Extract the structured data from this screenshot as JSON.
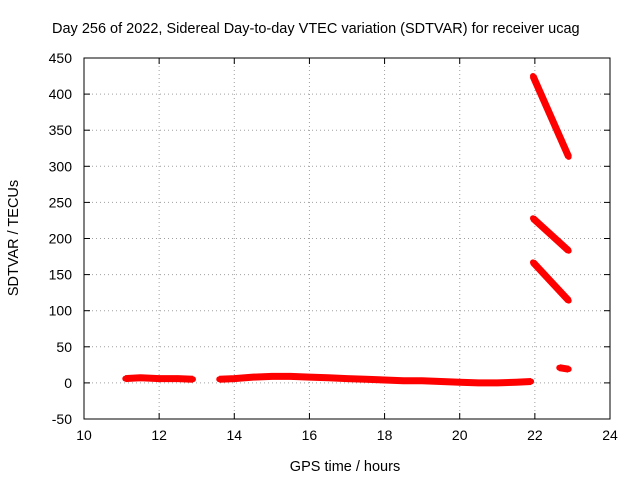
{
  "chart_data": {
    "type": "scatter",
    "title": "Day 256 of 2022, Sidereal Day-to-day VTEC variation (SDTVAR) for receiver ucag",
    "xlabel": "GPS time / hours",
    "ylabel": "SDTVAR / TECUs",
    "xlim": [
      10,
      24
    ],
    "ylim": [
      -50,
      450
    ],
    "xticks": [
      10,
      12,
      14,
      16,
      18,
      20,
      22,
      24
    ],
    "yticks": [
      -50,
      0,
      50,
      100,
      150,
      200,
      250,
      300,
      350,
      400,
      450
    ],
    "grid": true,
    "color": "#ff0000",
    "series": [
      {
        "x": [
          11.1,
          11.5,
          12.0,
          12.5,
          12.9
        ],
        "y": [
          6,
          7,
          6,
          6,
          5
        ]
      },
      {
        "x": [
          13.6,
          14.0,
          14.5,
          15.0,
          15.5,
          16.0,
          16.5,
          17.0,
          17.5,
          18.0,
          18.5,
          19.0,
          19.5,
          20.0,
          20.5,
          21.0,
          21.5,
          21.9
        ],
        "y": [
          5,
          6,
          8,
          9,
          9,
          8,
          7,
          6,
          5,
          4,
          3,
          3,
          2,
          1,
          0,
          0,
          1,
          2
        ]
      },
      {
        "x": [
          21.95,
          22.9
        ],
        "y": [
          425,
          313
        ]
      },
      {
        "x": [
          21.95,
          22.9
        ],
        "y": [
          228,
          183
        ]
      },
      {
        "x": [
          21.95,
          22.9
        ],
        "y": [
          167,
          114
        ]
      },
      {
        "x": [
          22.65,
          22.9
        ],
        "y": [
          21,
          19
        ]
      }
    ]
  }
}
